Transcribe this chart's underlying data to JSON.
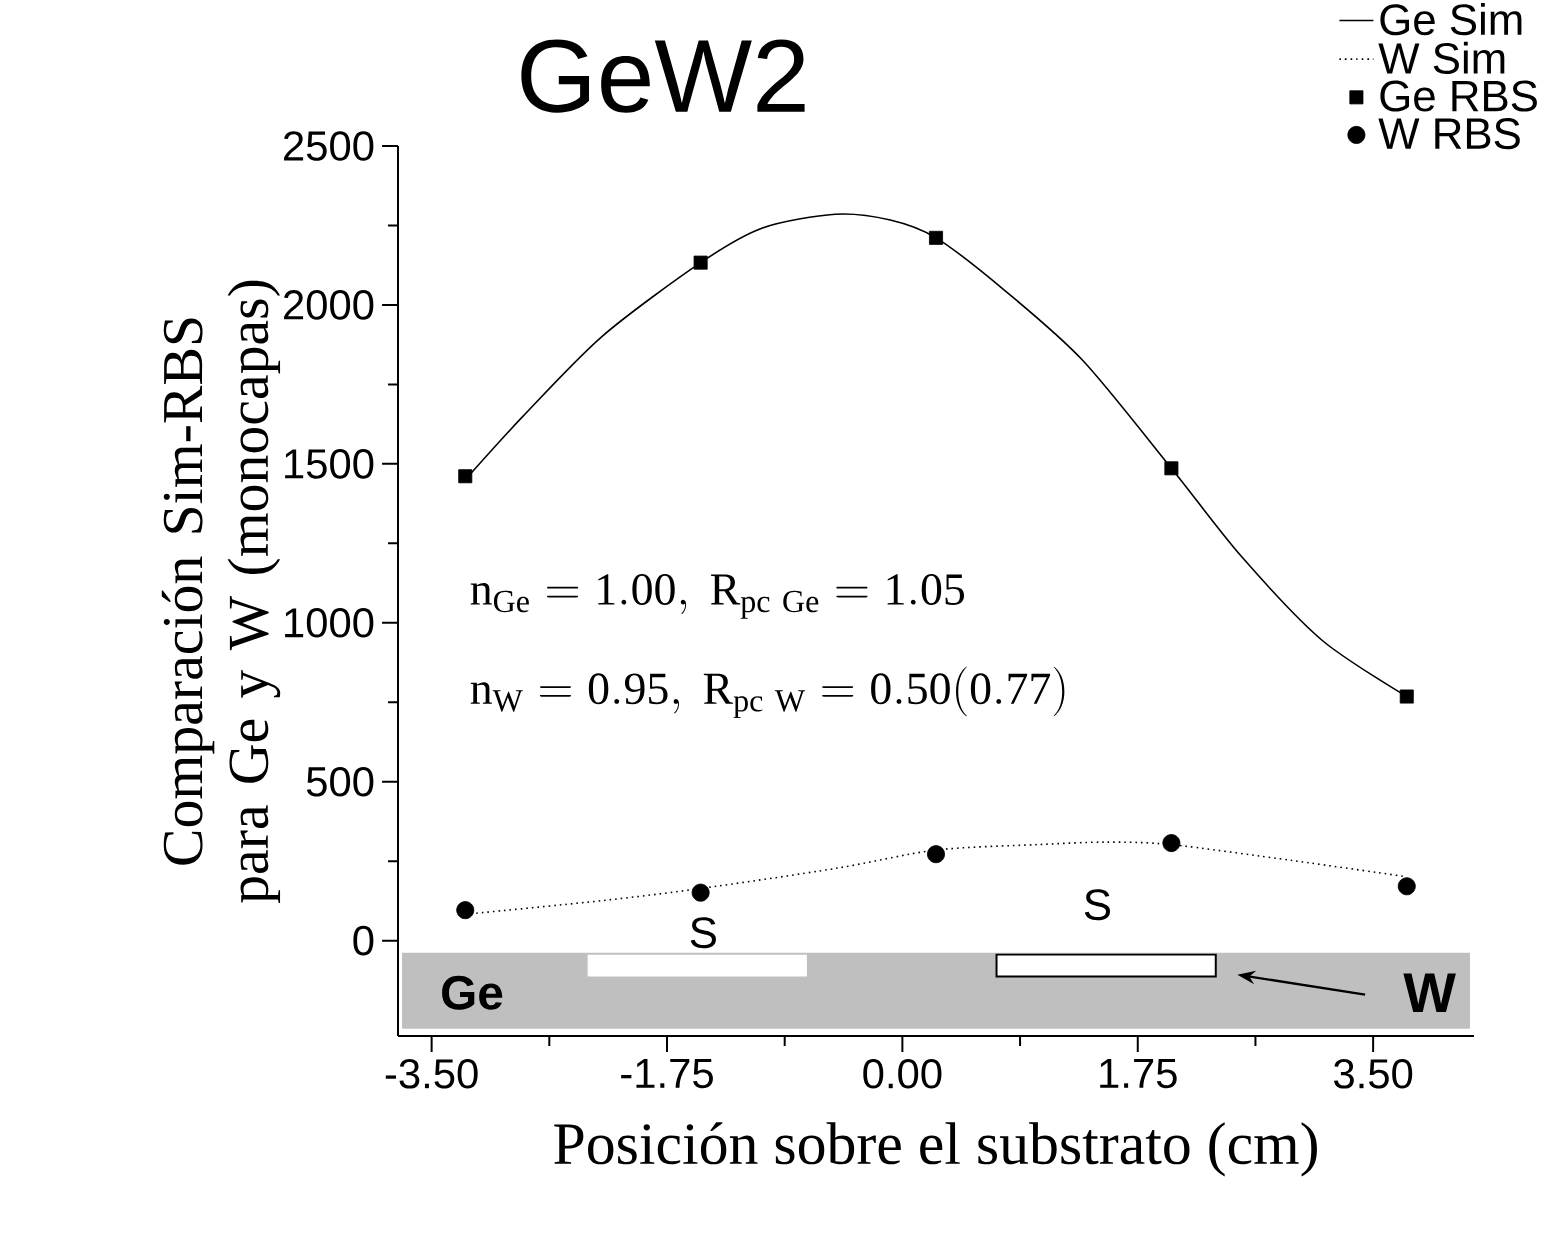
{
  "chart_data": {
    "type": "line",
    "title": "GeW2",
    "xlabel": "Posición sobre el substrato (cm)",
    "ylabel": "Comparación Sim-RBS para Ge y W (monocapas)",
    "xlim": [
      -3.75,
      4.25
    ],
    "ylim": [
      -300,
      2500
    ],
    "xticks": [
      {
        "value": -3.5,
        "label": "-3.50"
      },
      {
        "value": -1.75,
        "label": "-1.75"
      },
      {
        "value": 0,
        "label": "0.00"
      },
      {
        "value": 1.75,
        "label": "1.75"
      },
      {
        "value": 3.5,
        "label": "3.50"
      }
    ],
    "yticks": [
      0,
      500,
      1000,
      1500,
      2000,
      2500
    ],
    "legend": "top right",
    "series": [
      {
        "name": "Ge Sim",
        "color": "#000000",
        "line_style": "solid",
        "marker": "none",
        "x": [
          -3.25,
          -2.82,
          -2.23,
          -1.5,
          -1.04,
          -0.5,
          -0.09,
          0.25,
          0.74,
          1.34,
          2.0,
          2.52,
          3.12,
          3.75
        ],
        "values": [
          1450,
          1650,
          1902,
          2133,
          2242,
          2285,
          2267,
          2211,
          2053,
          1826,
          1486,
          1209,
          945,
          768
        ]
      },
      {
        "name": "W Sim",
        "color": "#000000",
        "line_style": "dotted",
        "marker": "none",
        "x": [
          -3.25,
          -2.23,
          -1.5,
          -0.5,
          0.25,
          1.0,
          1.51,
          2.0,
          2.9,
          3.75
        ],
        "values": [
          83,
          126,
          164,
          227,
          285,
          302,
          310,
          302,
          252,
          201
        ]
      },
      {
        "name": "Ge RBS",
        "type": "scatter",
        "color": "#000000",
        "marker": "square",
        "x": [
          -3.25,
          -1.5,
          0.25,
          2.0,
          3.75
        ],
        "values": [
          1461,
          2133,
          2211,
          1486,
          768
        ]
      },
      {
        "name": "W RBS",
        "type": "scatter",
        "color": "#000000",
        "marker": "circle",
        "x": [
          -3.25,
          -1.5,
          0.25,
          2.0,
          3.75
        ],
        "values": [
          96,
          151,
          272,
          307,
          171
        ]
      }
    ],
    "annotations": [
      "\\mathrm{n_{Ge} = 1.00,\\ R_{pc\\ Ge} = 1.05}",
      "\\mathrm{n_{W} = 0.95,\\ R_{pc\\ W} = 0.50(0.77)}",
      "S",
      "S",
      "Ge",
      "W"
    ]
  }
}
